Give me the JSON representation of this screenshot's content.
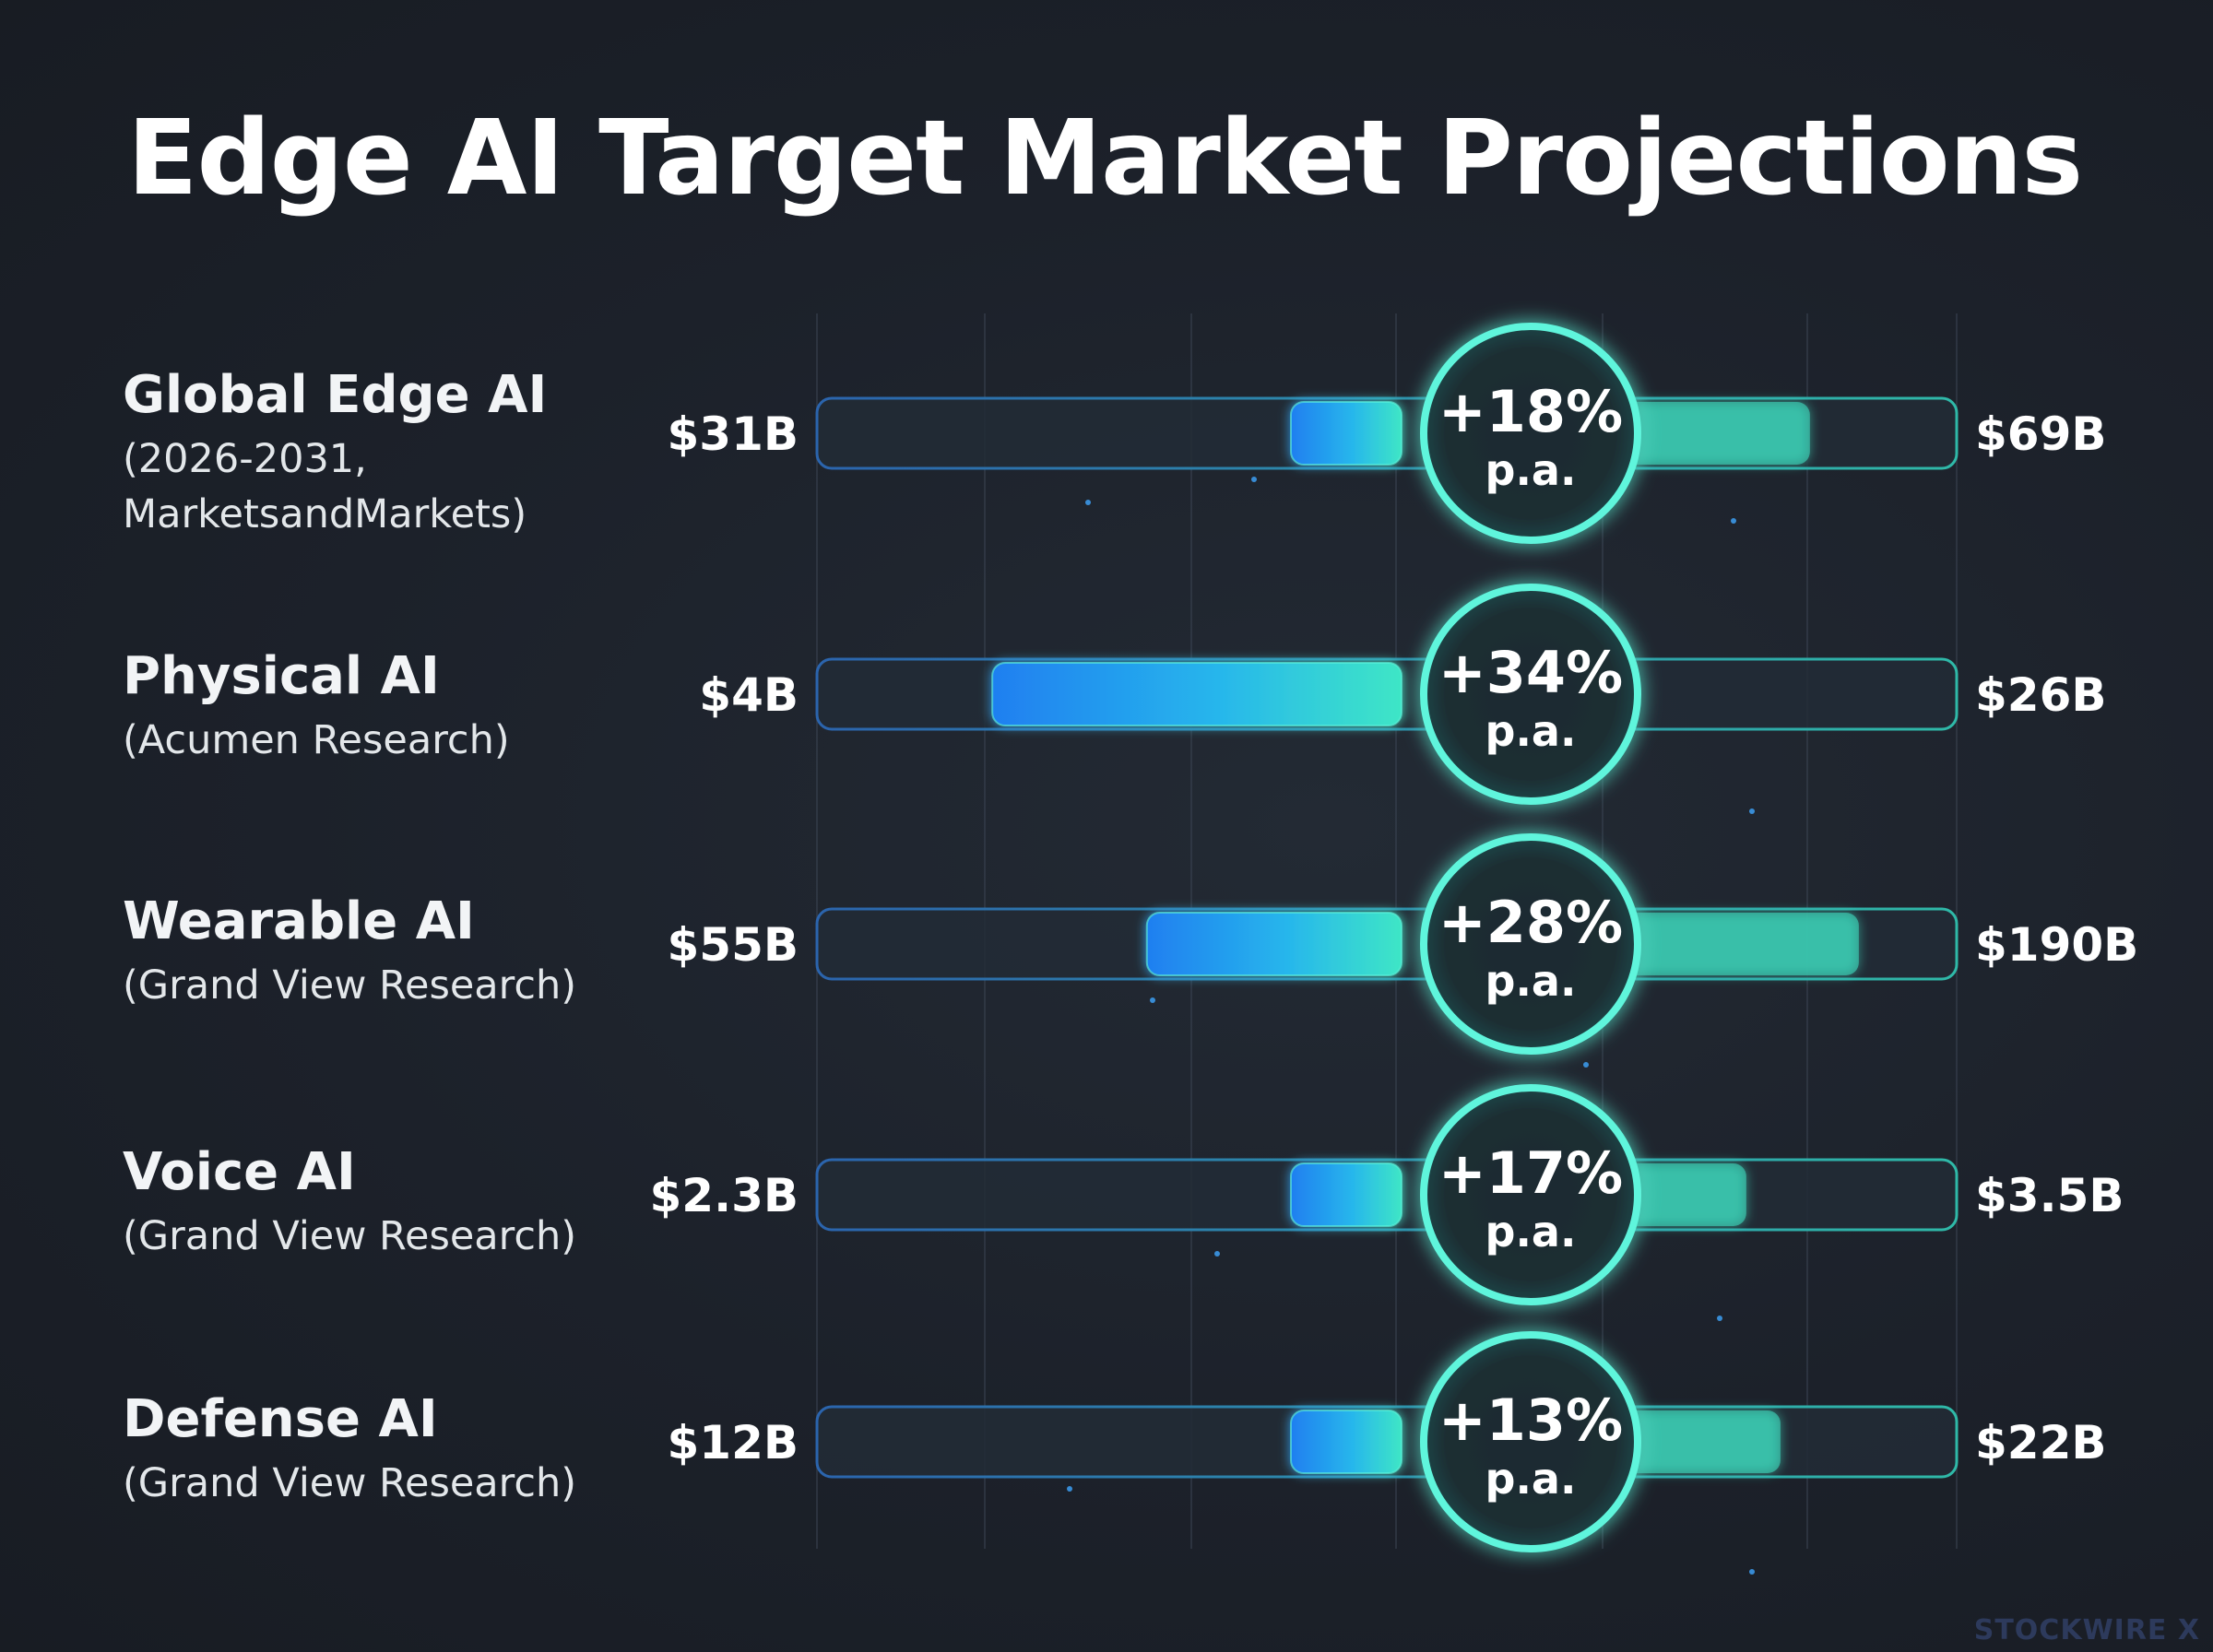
{
  "chart_data": {
    "type": "bar",
    "title": "Edge AI Target Market Projections",
    "rows": [
      {
        "name": "Global Edge AI",
        "source": "(2026-2031, MarketsandMarkets)",
        "start_label": "$31B",
        "end_label": "$69B",
        "start": 31,
        "end": 69,
        "growth": "+18%",
        "growth_unit": "p.a."
      },
      {
        "name": "Physical AI",
        "source": "(Acumen Research)",
        "start_label": "$4B",
        "end_label": "$26B",
        "start": 4,
        "end": 26,
        "growth": "+34%",
        "growth_unit": "p.a."
      },
      {
        "name": "Wearable AI",
        "source": "(Grand View Research)",
        "start_label": "$55B",
        "end_label": "$190B",
        "start": 55,
        "end": 190,
        "growth": "+28%",
        "growth_unit": "p.a."
      },
      {
        "name": "Voice AI",
        "source": "(Grand View Research)",
        "start_label": "$2.3B",
        "end_label": "$3.5B",
        "start": 2.3,
        "end": 3.5,
        "growth": "+17%",
        "growth_unit": "p.a."
      },
      {
        "name": "Defense AI",
        "source": "(Grand View Research)",
        "start_label": "$12B",
        "end_label": "$22B",
        "start": 12,
        "end": 22,
        "growth": "+13%",
        "growth_unit": "p.a."
      }
    ],
    "grid": true,
    "legend": "none"
  },
  "colors": {
    "background": "#1c212a",
    "bar_start": "#1f86f0",
    "bar_end": "#3ee6c6",
    "ring": "#5ff5dc",
    "track_stroke": "#2e6bb0"
  },
  "watermark": "STOCKWIRE X"
}
